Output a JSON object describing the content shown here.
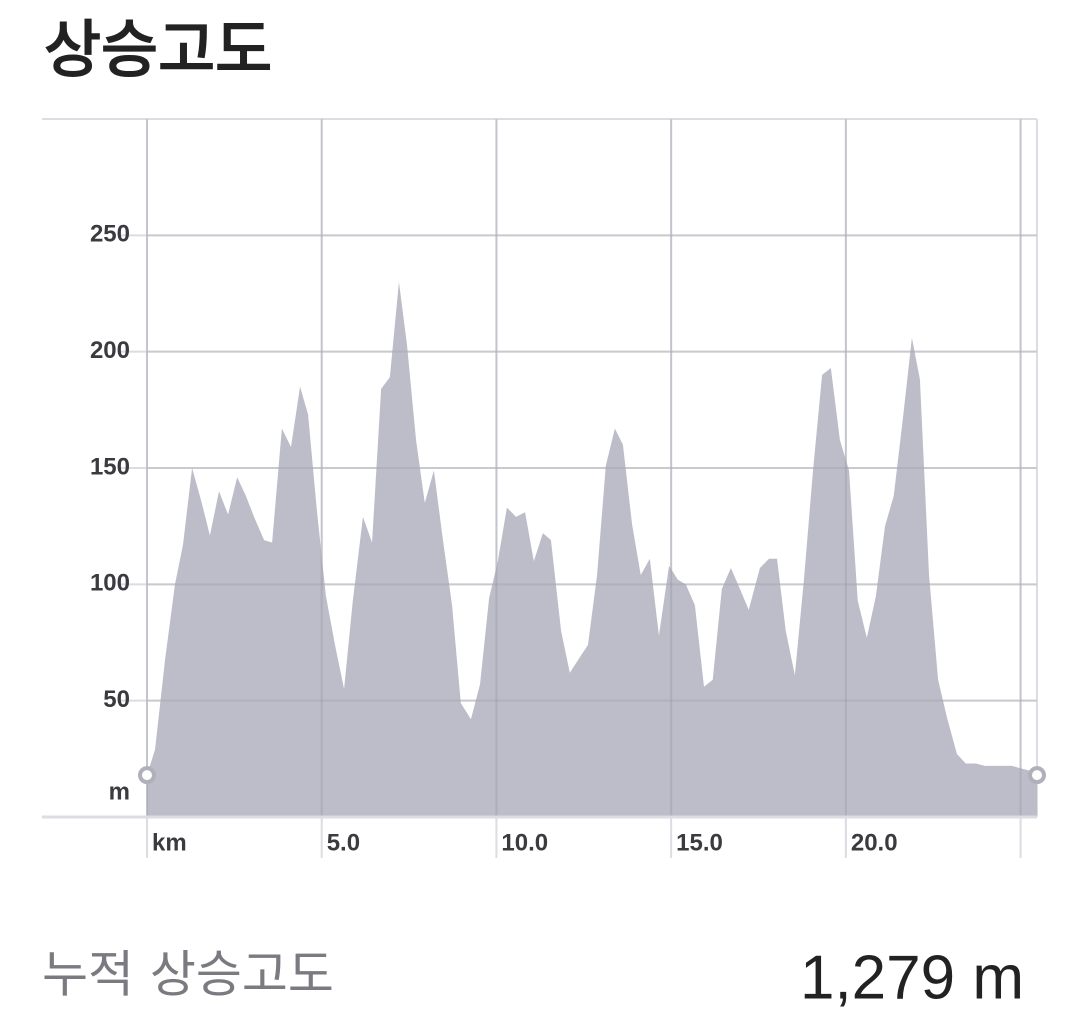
{
  "header": {
    "title": "상승고도"
  },
  "chart_data": {
    "type": "area",
    "color": "#b9b9c6",
    "grid": true,
    "end_markers": true,
    "x_unit": "km",
    "y_unit": "m",
    "x": [
      0,
      0.23,
      0.52,
      0.8,
      1.03,
      1.29,
      1.55,
      1.8,
      2.06,
      2.32,
      2.58,
      2.83,
      3.09,
      3.35,
      3.58,
      3.86,
      4.12,
      4.38,
      4.61,
      4.86,
      5.12,
      5.38,
      5.64,
      5.89,
      6.18,
      6.44,
      6.7,
      6.95,
      7.21,
      7.44,
      7.7,
      7.95,
      8.21,
      8.47,
      8.73,
      8.98,
      9.27,
      9.53,
      9.79,
      10.04,
      10.3,
      10.56,
      10.82,
      11.07,
      11.33,
      11.56,
      11.85,
      12.1,
      12.36,
      12.62,
      12.88,
      13.13,
      13.39,
      13.62,
      13.88,
      14.13,
      14.39,
      14.65,
      14.94,
      15.19,
      15.42,
      15.68,
      15.94,
      16.19,
      16.45,
      16.71,
      16.97,
      17.22,
      17.54,
      17.8,
      18.03,
      18.28,
      18.54,
      18.8,
      19.06,
      19.32,
      19.57,
      19.83,
      20.09,
      20.34,
      20.6,
      20.86,
      21.12,
      21.37,
      21.63,
      21.89,
      22.12,
      22.38,
      22.64,
      22.89,
      23.18,
      23.43,
      23.72,
      23.98,
      24.23,
      24.49,
      24.75,
      24.98,
      25.24,
      25.47
    ],
    "values": [
      18,
      29,
      68,
      100,
      117,
      150,
      136,
      121,
      140,
      130,
      146,
      138,
      128,
      119,
      118,
      167,
      159,
      185,
      173,
      132,
      95,
      74,
      55,
      93,
      129,
      118,
      184,
      189,
      230,
      203,
      162,
      135,
      149,
      119,
      91,
      49,
      42,
      57,
      94,
      110,
      133,
      129,
      131,
      110,
      122,
      119,
      80,
      62,
      68,
      74,
      104,
      151,
      167,
      160,
      126,
      104,
      111,
      78,
      108,
      102,
      100,
      91,
      56,
      59,
      98,
      107,
      98,
      89,
      107,
      111,
      111,
      80,
      61,
      102,
      149,
      190,
      193,
      162,
      149,
      93,
      77,
      95,
      125,
      138,
      171,
      206,
      188,
      104,
      59,
      43,
      27,
      23,
      23,
      22,
      22,
      22,
      22,
      21,
      20,
      18
    ],
    "xlim": [
      0,
      25.47
    ],
    "ylim": [
      0,
      300
    ],
    "xticks": [
      {
        "value": 0,
        "label": "km"
      },
      {
        "value": 5,
        "label": "5.0"
      },
      {
        "value": 10,
        "label": "10.0"
      },
      {
        "value": 15,
        "label": "15.0"
      },
      {
        "value": 20,
        "label": "20.0"
      },
      {
        "value": 25,
        "label": null
      }
    ],
    "yticks": [
      50,
      100,
      150,
      200,
      250
    ]
  },
  "summary": {
    "label": "누적 상승고도",
    "value": "1,279 m"
  }
}
